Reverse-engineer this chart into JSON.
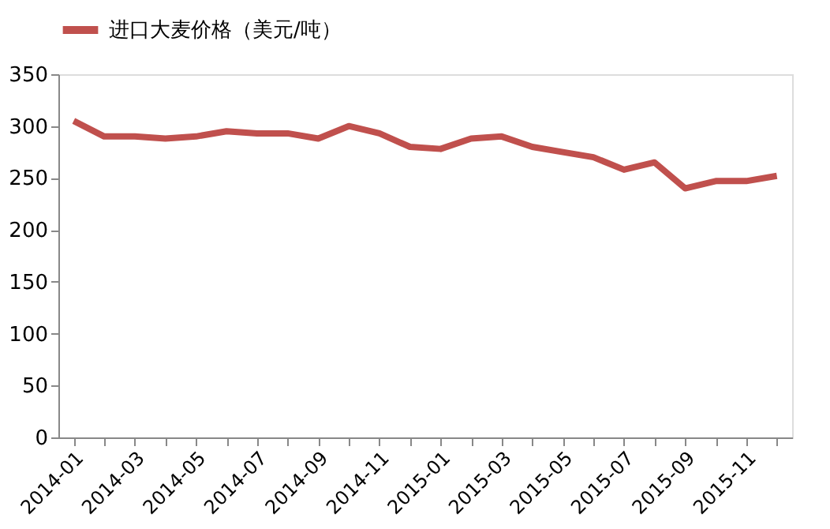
{
  "chart_data": {
    "type": "line",
    "categories": [
      "2014-01",
      null,
      "2014-03",
      null,
      "2014-05",
      null,
      "2014-07",
      null,
      "2014-09",
      null,
      "2014-11",
      null,
      "2015-01",
      null,
      "2015-03",
      null,
      "2015-05",
      null,
      "2015-07",
      null,
      "2015-09",
      null,
      "2015-11",
      null
    ],
    "series": [
      {
        "name": "进口大麦价格（美元/吨）",
        "color": "#c0504d",
        "values": [
          305,
          290,
          290,
          288,
          290,
          295,
          293,
          293,
          288,
          300,
          293,
          280,
          278,
          288,
          290,
          280,
          275,
          270,
          258,
          265,
          240,
          247,
          247,
          252
        ]
      }
    ],
    "ylim": [
      0,
      350
    ],
    "yticks": [
      0,
      50,
      100,
      150,
      200,
      250,
      300,
      350
    ],
    "grid": false,
    "legend": "top",
    "line_style": "solid",
    "marker": "none"
  }
}
